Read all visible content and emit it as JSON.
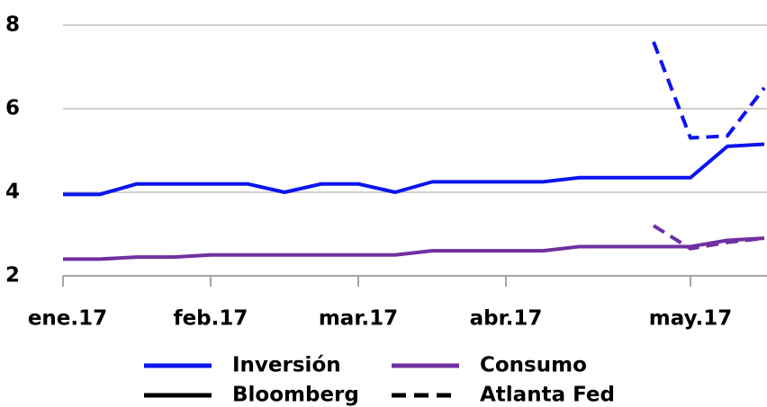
{
  "chart_data": {
    "type": "line",
    "categories": [
      "ene.17",
      null,
      null,
      null,
      "feb.17",
      null,
      null,
      null,
      "mar.17",
      null,
      null,
      null,
      "abr.17",
      null,
      null,
      null,
      null,
      "may.17",
      null,
      null
    ],
    "ylim": [
      2,
      8
    ],
    "yticks": [
      2,
      4,
      6,
      8
    ],
    "grid": true,
    "series": [
      {
        "name": "Inversión",
        "color": "#0a14f0",
        "dash": false,
        "values": [
          3.95,
          3.95,
          4.2,
          4.2,
          4.2,
          4.2,
          4.0,
          4.2,
          4.2,
          4.0,
          4.25,
          4.25,
          4.25,
          4.25,
          4.35,
          4.35,
          4.35,
          4.35,
          5.1,
          5.15
        ]
      },
      {
        "name": "Consumo",
        "color": "#7030a0",
        "dash": false,
        "values": [
          2.4,
          2.4,
          2.45,
          2.45,
          2.5,
          2.5,
          2.5,
          2.5,
          2.5,
          2.5,
          2.6,
          2.6,
          2.6,
          2.6,
          2.7,
          2.7,
          2.7,
          2.7,
          2.85,
          2.9
        ]
      },
      {
        "name": "Inversión",
        "color": "#0a14f0",
        "dash": true,
        "values": [
          null,
          null,
          null,
          null,
          null,
          null,
          null,
          null,
          null,
          null,
          null,
          null,
          null,
          null,
          null,
          null,
          7.6,
          5.3,
          5.35,
          6.5
        ]
      },
      {
        "name": "Consumo",
        "color": "#7030a0",
        "dash": true,
        "values": [
          null,
          null,
          null,
          null,
          null,
          null,
          null,
          null,
          null,
          null,
          null,
          null,
          null,
          null,
          null,
          null,
          3.2,
          2.65,
          2.8,
          2.9
        ]
      }
    ],
    "legend": [
      {
        "label": "Inversión",
        "color": "#0a14f0",
        "dash": false
      },
      {
        "label": "Consumo",
        "color": "#7030a0",
        "dash": false
      },
      {
        "label": "Bloomberg",
        "color": "#000000",
        "dash": false
      },
      {
        "label": "Atlanta Fed",
        "color": "#000000",
        "dash": true
      }
    ]
  }
}
